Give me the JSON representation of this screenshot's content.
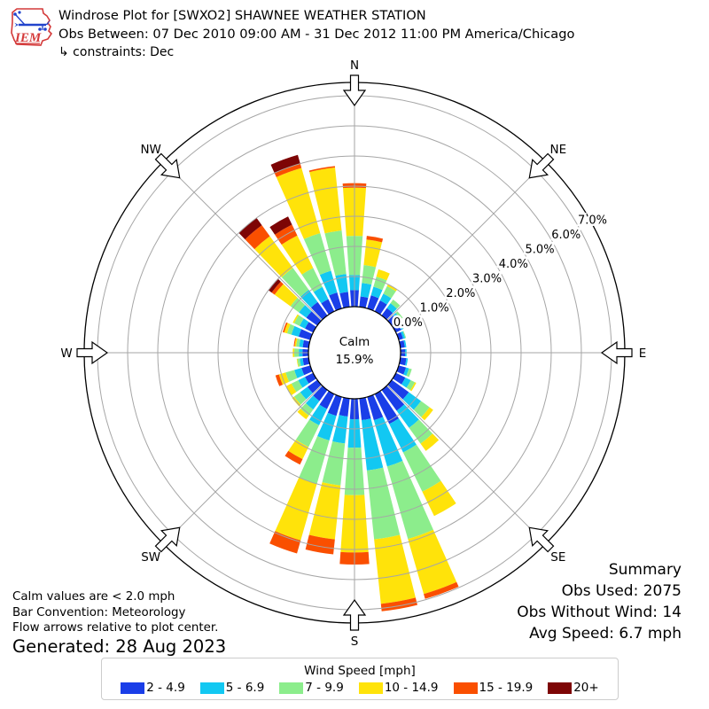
{
  "header": {
    "title": "Windrose Plot for [SWXO2] SHAWNEE WEATHER STATION",
    "subtitle": "Obs Between: 07 Dec 2010 09:00 AM - 31 Dec 2012 11:00 PM America/Chicago",
    "constraints": " ↳ constraints: Dec",
    "logo_text": "IEM"
  },
  "summary": {
    "heading": "Summary",
    "obs_used": "Obs Used: 2075",
    "obs_without_wind": "Obs Without Wind: 14",
    "avg_speed": "Avg Speed: 6.7 mph"
  },
  "footer": {
    "calm_note": "Calm values are < 2.0 mph",
    "bar_convention": "Bar Convention: Meteorology",
    "flow_note": "Flow arrows relative to plot center.",
    "generated": "Generated: 28 Aug 2023"
  },
  "legend": {
    "title": "Wind Speed [mph]",
    "bins": [
      {
        "label": "2 - 4.9",
        "color": "#1a3ee8"
      },
      {
        "label": "5 - 6.9",
        "color": "#12c8f2"
      },
      {
        "label": "7 - 9.9",
        "color": "#8ced8c"
      },
      {
        "label": "10 - 14.9",
        "color": "#ffe30a"
      },
      {
        "label": "15 - 19.9",
        "color": "#fa4f00"
      },
      {
        "label": "20+",
        "color": "#7d0505"
      }
    ]
  },
  "calm": {
    "label": "Calm",
    "value": "15.9%"
  },
  "chart_data": {
    "type": "windrose",
    "units": "percent frequency",
    "title": "Windrose Plot for [SWXO2] SHAWNEE WEATHER STATION",
    "bar_convention": "Meteorology (bars point toward direction wind blows FROM)",
    "calm_percent": 15.9,
    "radial_ticks_percent": [
      0.0,
      1.0,
      2.0,
      3.0,
      4.0,
      5.0,
      6.0,
      7.0
    ],
    "radial_tick_labels": [
      "0.0%",
      "1.0%",
      "2.0%",
      "3.0%",
      "4.0%",
      "5.0%",
      "6.0%",
      "7.0%"
    ],
    "rmax_percent": 7.5,
    "compass_labels": [
      "N",
      "NE",
      "E",
      "SE",
      "S",
      "SW",
      "W",
      "NW"
    ],
    "compass_angles_deg": [
      0,
      45,
      90,
      135,
      180,
      225,
      270,
      315
    ],
    "speed_bins_mph": [
      "2 - 4.9",
      "5 - 6.9",
      "7 - 9.9",
      "10 - 14.9",
      "15 - 19.9",
      "20+"
    ],
    "bin_colors": [
      "#1a3ee8",
      "#12c8f2",
      "#8ced8c",
      "#ffe30a",
      "#fa4f00",
      "#7d0505"
    ],
    "direction_step_deg": 10,
    "directions_deg": [
      0,
      10,
      20,
      30,
      40,
      50,
      60,
      70,
      80,
      90,
      100,
      110,
      120,
      130,
      140,
      150,
      160,
      170,
      180,
      190,
      200,
      210,
      220,
      230,
      240,
      250,
      260,
      270,
      280,
      290,
      300,
      310,
      320,
      330,
      340,
      350
    ],
    "frequencies_percent_by_direction": [
      [
        0.55,
        0.5,
        1.3,
        1.6,
        0.15,
        0.0
      ],
      [
        0.35,
        0.45,
        0.6,
        0.85,
        0.12,
        0.0
      ],
      [
        0.45,
        0.3,
        0.35,
        0.25,
        0.0,
        0.0
      ],
      [
        0.4,
        0.25,
        0.28,
        0.07,
        0.0,
        0.0
      ],
      [
        0.3,
        0.2,
        0.15,
        0.0,
        0.0,
        0.0
      ],
      [
        0.25,
        0.12,
        0.08,
        0.0,
        0.0,
        0.0
      ],
      [
        0.2,
        0.08,
        0.02,
        0.0,
        0.0,
        0.0
      ],
      [
        0.15,
        0.07,
        0.03,
        0.0,
        0.0,
        0.0
      ],
      [
        0.15,
        0.05,
        0.0,
        0.0,
        0.0,
        0.0
      ],
      [
        0.15,
        0.05,
        0.0,
        0.0,
        0.0,
        0.0
      ],
      [
        0.2,
        0.05,
        0.0,
        0.0,
        0.0,
        0.0
      ],
      [
        0.25,
        0.1,
        0.1,
        0.0,
        0.0,
        0.0
      ],
      [
        0.35,
        0.2,
        0.15,
        0.05,
        0.0,
        0.0
      ],
      [
        0.7,
        0.5,
        0.35,
        0.15,
        0.0,
        0.0
      ],
      [
        0.85,
        0.7,
        0.65,
        0.3,
        0.0,
        0.0
      ],
      [
        1.1,
        1.05,
        1.45,
        0.9,
        0.0,
        0.0
      ],
      [
        0.8,
        1.6,
        2.5,
        1.9,
        0.17,
        0.0
      ],
      [
        0.72,
        1.68,
        2.3,
        2.15,
        0.25,
        0.0
      ],
      [
        0.68,
        0.94,
        1.58,
        1.9,
        0.4,
        0.0
      ],
      [
        0.6,
        0.9,
        1.4,
        1.8,
        0.5,
        0.0
      ],
      [
        0.65,
        0.85,
        1.5,
        1.95,
        0.45,
        0.0
      ],
      [
        0.55,
        0.6,
        0.8,
        0.45,
        0.2,
        0.0
      ],
      [
        0.45,
        0.35,
        0.25,
        0.15,
        0.0,
        0.0
      ],
      [
        0.4,
        0.3,
        0.25,
        0.08,
        0.0,
        0.0
      ],
      [
        0.3,
        0.25,
        0.25,
        0.2,
        0.0,
        0.0
      ],
      [
        0.3,
        0.25,
        0.3,
        0.23,
        0.12,
        0.0
      ],
      [
        0.2,
        0.1,
        0.08,
        0.02,
        0.0,
        0.0
      ],
      [
        0.2,
        0.12,
        0.15,
        0.05,
        0.0,
        0.0
      ],
      [
        0.2,
        0.12,
        0.1,
        0.05,
        0.03,
        0.0
      ],
      [
        0.4,
        0.25,
        0.15,
        0.1,
        0.05,
        0.0
      ],
      [
        0.3,
        0.2,
        0.2,
        0.05,
        0.0,
        0.0
      ],
      [
        0.45,
        0.3,
        0.35,
        0.65,
        0.12,
        0.13
      ],
      [
        0.55,
        0.5,
        0.9,
        1.3,
        0.45,
        0.3
      ],
      [
        0.45,
        0.45,
        0.7,
        1.2,
        0.4,
        0.3
      ],
      [
        0.55,
        0.75,
        1.3,
        2.25,
        0.15,
        0.3
      ],
      [
        0.5,
        0.6,
        1.45,
        2.1,
        0.05,
        0.0
      ]
    ]
  }
}
